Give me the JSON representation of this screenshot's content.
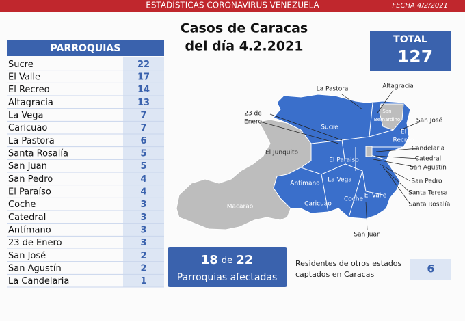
{
  "header": {
    "title": "ESTADÍSTICAS CORONAVIRUS VENEZUELA",
    "date": "FECHA 4/2/2021"
  },
  "title": [
    "Casos de Caracas",
    "del día 4.2.2021"
  ],
  "total": {
    "label": "TOTAL",
    "value": 127
  },
  "table": {
    "header": "PARROQUIAS",
    "rows": [
      [
        "Sucre",
        22
      ],
      [
        "El Valle",
        17
      ],
      [
        "El Recreo",
        14
      ],
      [
        "Altagracia",
        13
      ],
      [
        "La Vega",
        7
      ],
      [
        "Caricuao",
        7
      ],
      [
        "La Pastora",
        6
      ],
      [
        "Santa Rosalía",
        5
      ],
      [
        "San Juan",
        5
      ],
      [
        "San Pedro",
        4
      ],
      [
        "El Paraíso",
        4
      ],
      [
        "Coche",
        3
      ],
      [
        "Catedral",
        3
      ],
      [
        "Antímano",
        3
      ],
      [
        "23 de Enero",
        3
      ],
      [
        "San José",
        2
      ],
      [
        "San Agustín",
        2
      ],
      [
        "La Candelaria",
        1
      ]
    ]
  },
  "map_labels": [
    [
      "La Pastora"
    ],
    [
      "Altagracia"
    ],
    [
      "23 de",
      "Enero"
    ],
    [
      "Sucre"
    ],
    [
      "San",
      "Bernardino"
    ],
    [
      "San José"
    ],
    [
      "El",
      "Recreo"
    ],
    [
      "Candelaria"
    ],
    [
      "Catedral"
    ],
    [
      "San Agustín"
    ],
    [
      "El Junquito"
    ],
    [
      "El Paraíso"
    ],
    [
      "La Vega"
    ],
    [
      "Antímano"
    ],
    [
      "San Pedro"
    ],
    [
      "Santa Teresa"
    ],
    [
      "Santa Rosalía"
    ],
    [
      "Macarao"
    ],
    [
      "Caricuao"
    ],
    [
      "Coche"
    ],
    [
      "El Valle"
    ],
    [
      "San Juan"
    ]
  ],
  "affected": {
    "count": 18,
    "connector": "de",
    "total": 22,
    "label": "Parroquias afectadas"
  },
  "residents": {
    "label": [
      "Residentes de otros estados",
      "captados en Caracas"
    ],
    "value": 6
  }
}
